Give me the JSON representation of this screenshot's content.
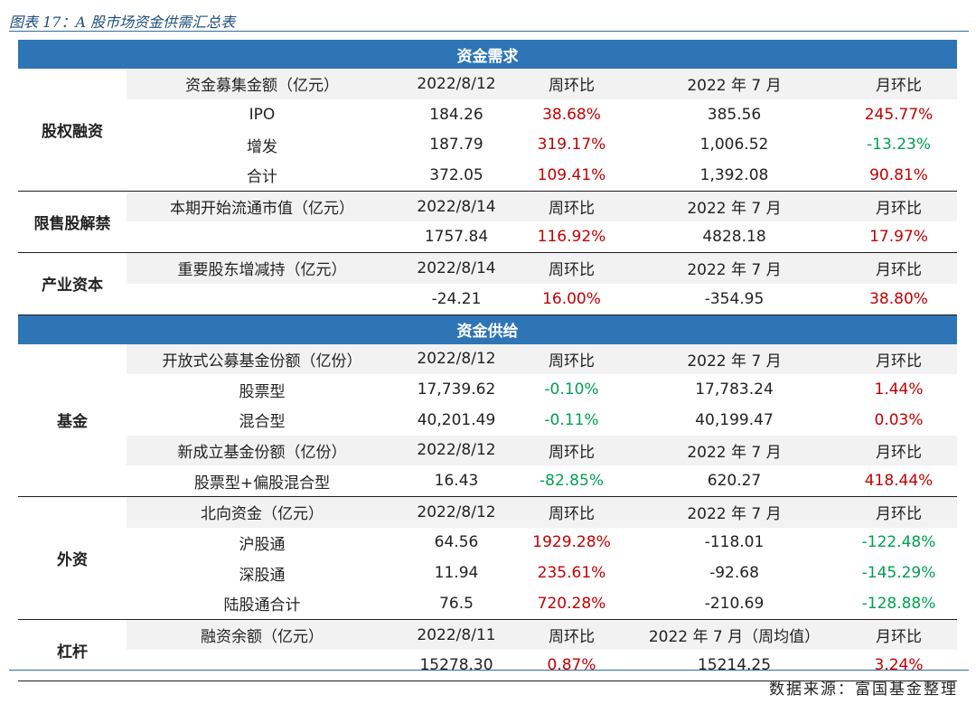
{
  "title": "图表 17：A 股市场资金供需汇总表",
  "source": "数据来源：富国基金整理",
  "colors": {
    "section_bg": "#2e75b6",
    "positive": "#c00000",
    "negative": "#00a050",
    "header_bg": "#f2f2f2"
  },
  "demand": {
    "heading": "资金需求",
    "equity": {
      "group": "股权融资",
      "header": [
        "资金募集金额（亿元）",
        "2022/8/12",
        "周环比",
        "2022 年 7 月",
        "月环比"
      ],
      "rows": [
        [
          "IPO",
          "184.26",
          "38.68%",
          "385.56",
          "245.77%"
        ],
        [
          "增发",
          "187.79",
          "319.17%",
          "1,006.52",
          "-13.23%"
        ],
        [
          "合计",
          "372.05",
          "109.41%",
          "1,392.08",
          "90.81%"
        ]
      ]
    },
    "unlock": {
      "group": "限售股解禁",
      "header": [
        "本期开始流通市值（亿元）",
        "2022/8/14",
        "周环比",
        "2022 年 7 月",
        "月环比"
      ],
      "row": [
        "",
        "1757.84",
        "116.92%",
        "4828.18",
        "17.97%"
      ]
    },
    "industry": {
      "group": "产业资本",
      "header": [
        "重要股东增减持（亿元）",
        "2022/8/14",
        "周环比",
        "2022 年 7 月",
        "月环比"
      ],
      "row": [
        "",
        "-24.21",
        "16.00%",
        "-354.95",
        "38.80%"
      ]
    }
  },
  "supply": {
    "heading": "资金供给",
    "fund": {
      "group": "基金",
      "header1": [
        "开放式公募基金份额（亿份）",
        "2022/8/12",
        "周环比",
        "2022 年 7 月",
        "月环比"
      ],
      "rows1": [
        [
          "股票型",
          "17,739.62",
          "-0.10%",
          "17,783.24",
          "1.44%"
        ],
        [
          "混合型",
          "40,201.49",
          "-0.11%",
          "40,199.47",
          "0.03%"
        ]
      ],
      "header2": [
        "新成立基金份额（亿份）",
        "2022/8/12",
        "周环比",
        "2022 年 7 月",
        "月环比"
      ],
      "row2": [
        "股票型+偏股混合型",
        "16.43",
        "-82.85%",
        "620.27",
        "418.44%"
      ]
    },
    "foreign": {
      "group": "外资",
      "header": [
        "北向资金（亿元）",
        "2022/8/12",
        "周环比",
        "2022 年 7 月",
        "月环比"
      ],
      "rows": [
        [
          "沪股通",
          "64.56",
          "1929.28%",
          "-118.01",
          "-122.48%"
        ],
        [
          "深股通",
          "11.94",
          "235.61%",
          "-92.68",
          "-145.29%"
        ],
        [
          "陆股通合计",
          "76.5",
          "720.28%",
          "-210.69",
          "-128.88%"
        ]
      ]
    },
    "leverage": {
      "group": "杠杆",
      "header": [
        "融资余额（亿元）",
        "2022/8/11",
        "周环比",
        "2022 年 7 月（周均值）",
        "月环比"
      ],
      "row": [
        "",
        "15278.30",
        "0.87%",
        "15214.25",
        "3.24%"
      ]
    }
  }
}
